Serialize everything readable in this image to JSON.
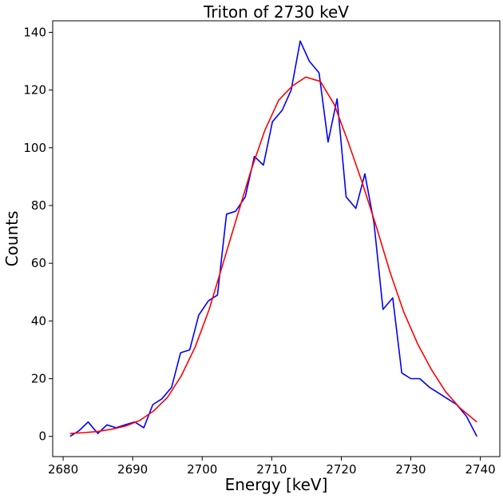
{
  "chart_data": {
    "type": "line",
    "title": "Triton of 2730 keV",
    "xlabel": "Energy [keV]",
    "ylabel": "Counts",
    "xlim": [
      2678.5,
      2742.8
    ],
    "ylim": [
      -7,
      144
    ],
    "xticks": [
      2680,
      2690,
      2700,
      2710,
      2720,
      2730,
      2740
    ],
    "yticks": [
      0,
      20,
      40,
      60,
      80,
      100,
      120,
      140
    ],
    "grid": false,
    "legend": "none",
    "series": [
      {
        "color": "#0000ff",
        "x": [
          2681.0,
          2682.3,
          2683.6,
          2685.0,
          2686.3,
          2687.6,
          2688.9,
          2690.3,
          2691.6,
          2692.9,
          2694.2,
          2695.6,
          2696.9,
          2698.2,
          2699.5,
          2700.9,
          2702.2,
          2703.5,
          2704.8,
          2706.2,
          2707.5,
          2708.8,
          2710.1,
          2711.5,
          2712.8,
          2714.1,
          2715.4,
          2716.8,
          2718.1,
          2719.4,
          2720.7,
          2722.1,
          2723.4,
          2724.7,
          2726.0,
          2727.4,
          2728.7,
          2730.0,
          2731.3,
          2732.7,
          2734.0,
          2735.3,
          2736.6,
          2738.0,
          2739.5
        ],
        "values": [
          0,
          2,
          5,
          1,
          4,
          3,
          4,
          5,
          3,
          11,
          13,
          17,
          29,
          30,
          42,
          47,
          49,
          77,
          78,
          83,
          97,
          94,
          109,
          113,
          120,
          137,
          130,
          126,
          102,
          117,
          83,
          79,
          91,
          74,
          44,
          48,
          22,
          20,
          20,
          17,
          15,
          13,
          11,
          7,
          0
        ]
      },
      {
        "color": "#ff0000",
        "x": [
          2681,
          2683,
          2685,
          2687,
          2689,
          2691,
          2693,
          2695,
          2697,
          2699,
          2701,
          2703,
          2705,
          2707,
          2709,
          2711,
          2713,
          2714.9,
          2717,
          2719,
          2721,
          2723,
          2725,
          2727,
          2729,
          2731,
          2733,
          2735,
          2737,
          2739.5
        ],
        "values": [
          1,
          1.3,
          1.7,
          2.5,
          3.6,
          5.5,
          8.8,
          13.5,
          21,
          31,
          44,
          60,
          76,
          92,
          106,
          116.5,
          121.5,
          124.5,
          123,
          115,
          102,
          88,
          73,
          57,
          43,
          32,
          23,
          15.5,
          10,
          5
        ]
      }
    ]
  }
}
